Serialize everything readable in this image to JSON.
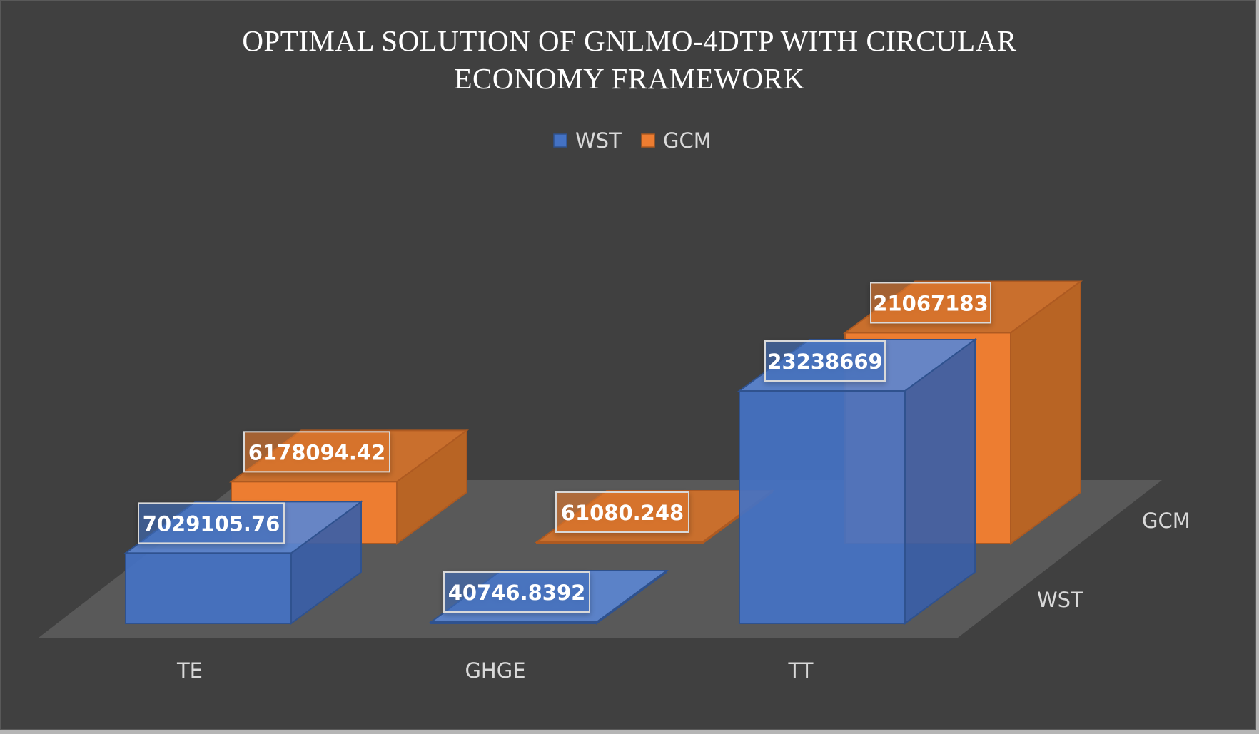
{
  "chart_data": {
    "type": "bar",
    "title": "OPTIMAL SOLUTION OF GNLMO-4DTP WITH CIRCULAR ECONOMY FRAMEWORK",
    "title_lines": [
      "OPTIMAL SOLUTION OF GNLMO-4DTP WITH CIRCULAR",
      "ECONOMY FRAMEWORK"
    ],
    "categories": [
      "TE",
      "GHGE",
      "TT"
    ],
    "series": [
      {
        "name": "WST",
        "values": [
          7029105.76,
          40746.8392,
          23238669
        ],
        "labels": [
          "7029105.76",
          "40746.8392",
          "23238669"
        ],
        "color": "#4472c4"
      },
      {
        "name": "GCM",
        "values": [
          6178094.42,
          61080.248,
          21067183
        ],
        "labels": [
          "6178094.42",
          "61080.248",
          "21067183"
        ],
        "color": "#ed7d31"
      }
    ],
    "legend": [
      "WST",
      "GCM"
    ],
    "legend_position": "top",
    "depth_axis_labels": [
      "WST",
      "GCM"
    ],
    "xlabel": "",
    "ylabel": "",
    "ylim": [
      0,
      23238669
    ],
    "grid": false,
    "colors": {
      "background": "#404040",
      "floor": "#595959",
      "wst": "#4472c4",
      "gcm": "#ed7d31",
      "text": "#d9d9d9"
    }
  }
}
